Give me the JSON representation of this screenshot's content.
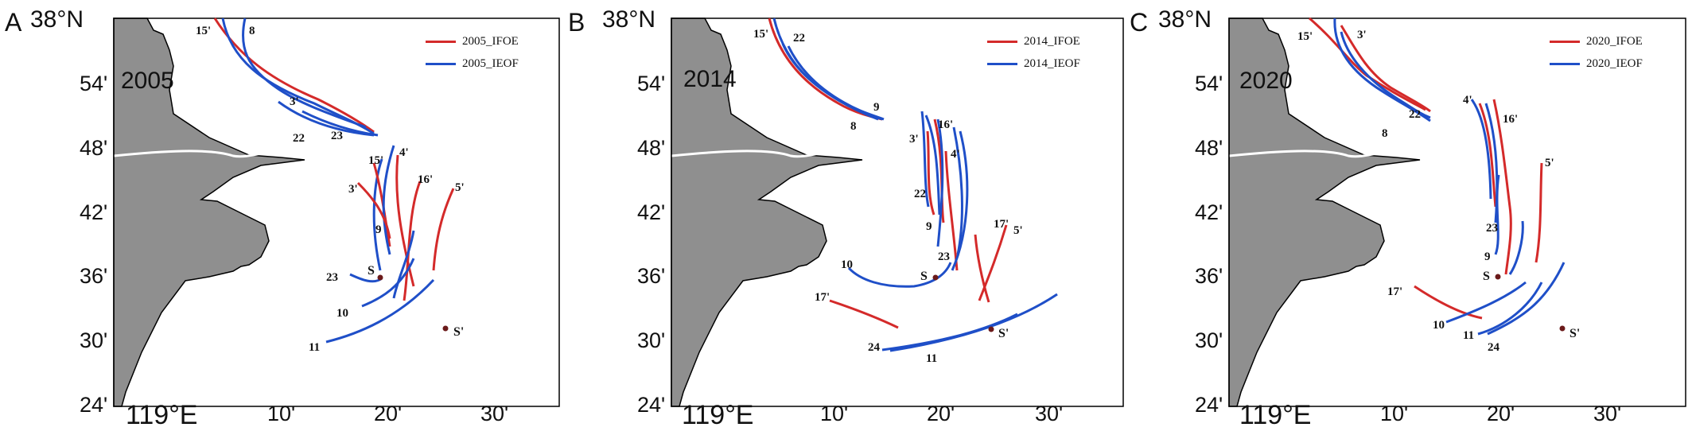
{
  "colors": {
    "ifoe": "#d42a2a",
    "ieof": "#1f4fc8",
    "land": "#8f8f8f",
    "coast": "#000000",
    "station": "#6b1a1a"
  },
  "axes": {
    "lat_ticks": [
      "38°N",
      "54'",
      "48'",
      "42'",
      "36'",
      "30'",
      "24'"
    ],
    "lon_ticks": [
      "119°E",
      "10'",
      "20'",
      "30'"
    ]
  },
  "panels": [
    {
      "letter": "A",
      "year": "2005",
      "legend": [
        {
          "label": "2005_IFOE",
          "color": "ifoe"
        },
        {
          "label": "2005_IEOF",
          "color": "ieof"
        }
      ],
      "stations": [
        {
          "label": "S"
        },
        {
          "label": "S'"
        }
      ],
      "front_labels": [
        "15'",
        "8",
        "3'",
        "22",
        "23",
        "15'",
        "4'",
        "16'",
        "5'",
        "3'",
        "9",
        "23",
        "10",
        "11"
      ]
    },
    {
      "letter": "B",
      "year": "2014",
      "legend": [
        {
          "label": "2014_IFOE",
          "color": "ifoe"
        },
        {
          "label": "2014_IEOF",
          "color": "ieof"
        }
      ],
      "stations": [
        {
          "label": "S"
        },
        {
          "label": "S'"
        }
      ],
      "front_labels": [
        "15'",
        "22",
        "9",
        "8",
        "3'",
        "16'",
        "4'",
        "22",
        "9",
        "23",
        "17'",
        "5'",
        "10",
        "17'",
        "24",
        "11"
      ]
    },
    {
      "letter": "C",
      "year": "2020",
      "legend": [
        {
          "label": "2020_IFOE",
          "color": "ifoe"
        },
        {
          "label": "2020_IEOF",
          "color": "ieof"
        }
      ],
      "stations": [
        {
          "label": "S"
        },
        {
          "label": "S'"
        }
      ],
      "front_labels": [
        "15'",
        "3'",
        "22",
        "8",
        "4'",
        "16'",
        "5'",
        "23",
        "9",
        "17'",
        "10",
        "11",
        "24"
      ]
    }
  ]
}
